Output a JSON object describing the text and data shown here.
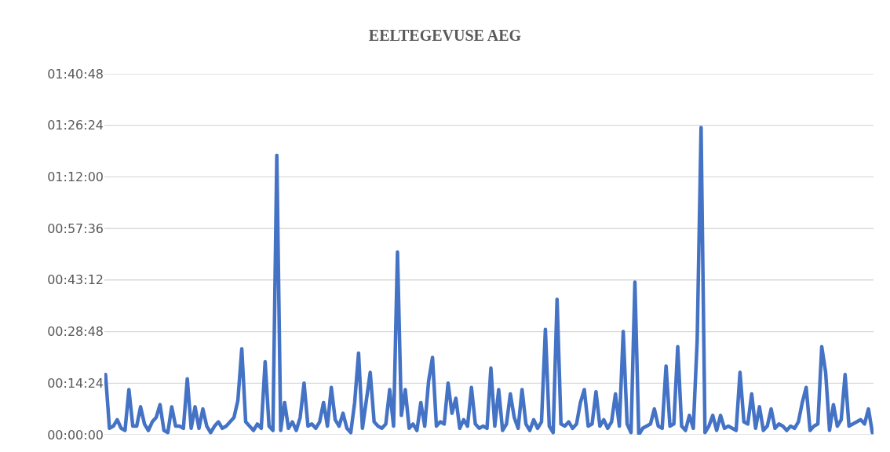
{
  "chart_data": {
    "type": "line",
    "title": "EELTEGEVUSE AEG",
    "categories": [
      null,
      null,
      null,
      null,
      null,
      null,
      null,
      null,
      null,
      null,
      null,
      null,
      null,
      null,
      null,
      null,
      null,
      null,
      null,
      null,
      null,
      null,
      null,
      null,
      null,
      null,
      null,
      null,
      null,
      null,
      null,
      null,
      null,
      null,
      null,
      null,
      null,
      null,
      null,
      null,
      null,
      null,
      null,
      null,
      null,
      null,
      null,
      null,
      null,
      null,
      null,
      null,
      null,
      null,
      null,
      null,
      null,
      null,
      null,
      null,
      null,
      null,
      null,
      null,
      null,
      null,
      null,
      null,
      null,
      null,
      null,
      null,
      null,
      null,
      null,
      null,
      null,
      null,
      null,
      null,
      null,
      null,
      null,
      null,
      null,
      null,
      null,
      null,
      null,
      null,
      null,
      null,
      null,
      null,
      null,
      null,
      null,
      null,
      null,
      null,
      null,
      null,
      null,
      null,
      null,
      null,
      null,
      null,
      null,
      null,
      null,
      null,
      null,
      null,
      null,
      null,
      null,
      null,
      null,
      null,
      null,
      null,
      null,
      null,
      null,
      null,
      null,
      null,
      null,
      null,
      null,
      null,
      null,
      null,
      null,
      null,
      null,
      null,
      null,
      null,
      null,
      null,
      null,
      null,
      null,
      null,
      null,
      null,
      null,
      null,
      null,
      null,
      null,
      null,
      null,
      null,
      null,
      null,
      null,
      null,
      null,
      null,
      null,
      null,
      null,
      null,
      null,
      null,
      null,
      null,
      null,
      null,
      null,
      null,
      null,
      null,
      null,
      null,
      null,
      null,
      null,
      null,
      null,
      null,
      null,
      null,
      null,
      null,
      null,
      null,
      null,
      null,
      null,
      null,
      null,
      null,
      null,
      null
    ],
    "series": [
      {
        "color": "#4472c4",
        "values": [
          0.28,
          0.03,
          0.04,
          0.07,
          0.03,
          0.02,
          0.21,
          0.04,
          0.04,
          0.13,
          0.05,
          0.02,
          0.06,
          0.08,
          0.14,
          0.02,
          0.01,
          0.13,
          0.04,
          0.04,
          0.03,
          0.26,
          0.03,
          0.13,
          0.03,
          0.12,
          0.04,
          0.01,
          0.04,
          0.06,
          0.03,
          0.04,
          0.06,
          0.08,
          0.16,
          0.4,
          0.06,
          0.04,
          0.02,
          0.05,
          0.03,
          0.34,
          0.04,
          0.02,
          1.3,
          0.02,
          0.15,
          0.03,
          0.06,
          0.02,
          0.08,
          0.24,
          0.04,
          0.05,
          0.03,
          0.06,
          0.15,
          0.04,
          0.22,
          0.07,
          0.04,
          0.1,
          0.03,
          0.01,
          0.15,
          0.38,
          0.03,
          0.16,
          0.29,
          0.06,
          0.04,
          0.03,
          0.05,
          0.21,
          0.04,
          0.85,
          0.09,
          0.21,
          0.03,
          0.05,
          0.02,
          0.15,
          0.04,
          0.25,
          0.36,
          0.04,
          0.06,
          0.05,
          0.24,
          0.1,
          0.17,
          0.03,
          0.07,
          0.04,
          0.22,
          0.05,
          0.03,
          0.04,
          0.03,
          0.31,
          0.04,
          0.21,
          0.02,
          0.05,
          0.19,
          0.08,
          0.03,
          0.21,
          0.05,
          0.02,
          0.07,
          0.03,
          0.06,
          0.49,
          0.04,
          0.01,
          0.63,
          0.05,
          0.04,
          0.06,
          0.03,
          0.05,
          0.15,
          0.21,
          0.04,
          0.05,
          0.2,
          0.04,
          0.07,
          0.03,
          0.06,
          0.19,
          0.04,
          0.48,
          0.05,
          0.01,
          0.71,
          0.0,
          0.03,
          0.04,
          0.05,
          0.12,
          0.04,
          0.03,
          0.32,
          0.04,
          0.05,
          0.41,
          0.04,
          0.02,
          0.09,
          0.03,
          0.44,
          1.43,
          0.01,
          0.04,
          0.09,
          0.02,
          0.09,
          0.03,
          0.04,
          0.03,
          0.02,
          0.29,
          0.06,
          0.05,
          0.19,
          0.03,
          0.13,
          0.02,
          0.04,
          0.12,
          0.03,
          0.05,
          0.04,
          0.02,
          0.04,
          0.03,
          0.06,
          0.15,
          0.22,
          0.02,
          0.04,
          0.05,
          0.41,
          0.29,
          0.02,
          0.14,
          0.04,
          0.07,
          0.28,
          0.04,
          0.05,
          0.06,
          0.07,
          0.05,
          0.12,
          0.01
        ]
      }
    ],
    "ylim": [
      0,
      1.68
    ],
    "yticks": [
      {
        "value": 0,
        "label": "00:00:00"
      },
      {
        "value": 0.24,
        "label": "00:14:24"
      },
      {
        "value": 0.48,
        "label": "00:28:48"
      },
      {
        "value": 0.72,
        "label": "00:43:12"
      },
      {
        "value": 0.96,
        "label": "00:57:36"
      },
      {
        "value": 1.2,
        "label": "01:12:00"
      },
      {
        "value": 1.44,
        "label": "01:26:24"
      },
      {
        "value": 1.68,
        "label": "01:40:48"
      }
    ],
    "grid": "y",
    "tick_labels": "y",
    "line_style": "solid"
  }
}
